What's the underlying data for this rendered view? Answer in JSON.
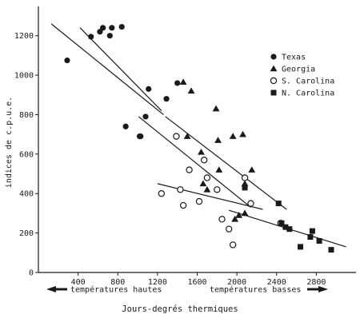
{
  "chart_data": {
    "type": "scatter",
    "title": "",
    "xlabel": "Jours-degrés thermiques",
    "ylabel": "indices de c.p.u.e.",
    "xlim": [
      0,
      3200
    ],
    "ylim": [
      0,
      1300
    ],
    "x_ticks": [
      400,
      800,
      1200,
      1600,
      2000,
      2400,
      2800
    ],
    "y_ticks": [
      0,
      200,
      400,
      600,
      800,
      1000,
      1200
    ],
    "x_tick_labels": [
      "400",
      "800",
      "1200",
      "1600",
      "2000",
      "2400",
      "2800"
    ],
    "y_tick_labels": [
      "0",
      "200",
      "400",
      "600",
      "800",
      "1000",
      "1200"
    ],
    "grid": false,
    "legend_position": "top-right",
    "series": [
      {
        "name": "Texas",
        "marker": "filled-circle",
        "color": "#1a1a1a",
        "points": [
          [
            290,
            1075
          ],
          [
            530,
            1195
          ],
          [
            620,
            1220
          ],
          [
            650,
            1240
          ],
          [
            720,
            1200
          ],
          [
            740,
            1240
          ],
          [
            840,
            1245
          ],
          [
            880,
            740
          ],
          [
            1020,
            690
          ],
          [
            1030,
            690
          ],
          [
            1080,
            790
          ],
          [
            1110,
            930
          ],
          [
            1290,
            880
          ],
          [
            1400,
            960
          ]
        ]
      },
      {
        "name": "Georgia",
        "marker": "filled-triangle",
        "color": "#1a1a1a",
        "points": [
          [
            1460,
            965
          ],
          [
            1540,
            920
          ],
          [
            1500,
            690
          ],
          [
            1640,
            610
          ],
          [
            1660,
            450
          ],
          [
            1700,
            420
          ],
          [
            1790,
            830
          ],
          [
            1810,
            670
          ],
          [
            1820,
            520
          ],
          [
            1960,
            690
          ],
          [
            2060,
            700
          ],
          [
            2080,
            450
          ],
          [
            2150,
            520
          ],
          [
            1980,
            270
          ],
          [
            2020,
            290
          ],
          [
            2080,
            300
          ]
        ]
      },
      {
        "name": "S. Carolina",
        "marker": "open-circle",
        "color": "#1a1a1a",
        "points": [
          [
            1240,
            400
          ],
          [
            1390,
            690
          ],
          [
            1430,
            420
          ],
          [
            1460,
            340
          ],
          [
            1520,
            520
          ],
          [
            1620,
            360
          ],
          [
            1670,
            570
          ],
          [
            1700,
            480
          ],
          [
            1800,
            420
          ],
          [
            1850,
            270
          ],
          [
            1920,
            220
          ],
          [
            1960,
            140
          ],
          [
            2080,
            480
          ],
          [
            2140,
            350
          ],
          [
            2440,
            250
          ]
        ]
      },
      {
        "name": "N. Carolina",
        "marker": "filled-square",
        "color": "#1a1a1a",
        "points": [
          [
            2080,
            430
          ],
          [
            2420,
            350
          ],
          [
            2490,
            230
          ],
          [
            2530,
            220
          ],
          [
            2640,
            130
          ],
          [
            2740,
            180
          ],
          [
            2760,
            210
          ],
          [
            2830,
            160
          ],
          [
            2950,
            115
          ],
          [
            2450,
            250
          ]
        ]
      }
    ],
    "trend_lines": [
      {
        "x": [
          130,
          1260
        ],
        "y": [
          1260,
          800
        ]
      },
      {
        "x": [
          420,
          1240
        ],
        "y": [
          1240,
          820
        ]
      },
      {
        "x": [
          1010,
          2140
        ],
        "y": [
          790,
          330
        ]
      },
      {
        "x": [
          1280,
          2500
        ],
        "y": [
          790,
          320
        ]
      },
      {
        "x": [
          1200,
          2260
        ],
        "y": [
          450,
          320
        ]
      },
      {
        "x": [
          1920,
          3100
        ],
        "y": [
          315,
          130
        ]
      }
    ],
    "annotations": {
      "left_arrow": "températures hautes",
      "right_arrow": "températures basses"
    }
  }
}
